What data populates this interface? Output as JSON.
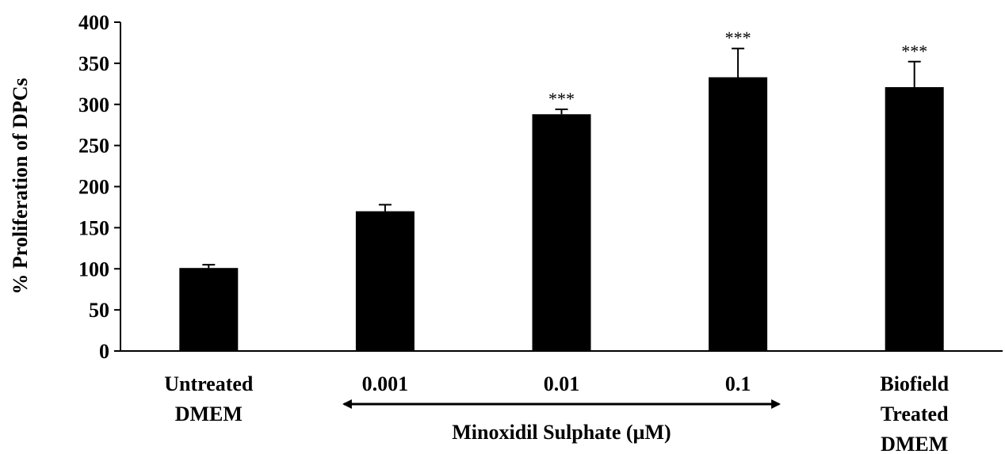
{
  "chart_data": {
    "type": "bar",
    "ylabel": "% Proliferation  of DPCs",
    "xlabel": "",
    "ylim": [
      0,
      400
    ],
    "yticks": [
      0,
      50,
      100,
      150,
      200,
      250,
      300,
      350,
      400
    ],
    "grid": false,
    "legend": "none",
    "bar_color": "#000000",
    "categories": [
      [
        "Untreated",
        "DMEM"
      ],
      [
        "0.001"
      ],
      [
        "0.01"
      ],
      [
        "0.1"
      ],
      [
        "Biofield",
        "Treated",
        "DMEM"
      ]
    ],
    "values": [
      101,
      170,
      288,
      333,
      321
    ],
    "errors": [
      4,
      8,
      6,
      35,
      31
    ],
    "significance": [
      "",
      "",
      "***",
      "***",
      "***"
    ],
    "group_annotation": {
      "label": "Minoxidil Sulphate (µM)",
      "spans": [
        1,
        3
      ]
    }
  }
}
